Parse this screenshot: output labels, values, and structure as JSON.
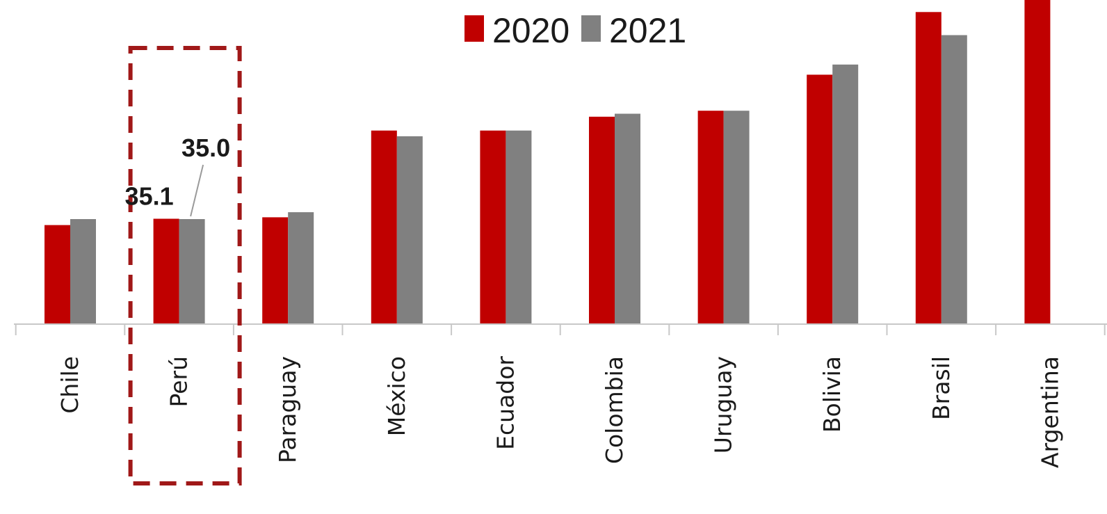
{
  "chart_data": {
    "type": "bar",
    "title": "",
    "xlabel": "",
    "ylabel": "",
    "categories": [
      "Chile",
      "Perú",
      "Paraguay",
      "México",
      "Ecuador",
      "Colombia",
      "Uruguay",
      "Bolivia",
      "Brasil",
      "Argentina"
    ],
    "series": [
      {
        "name": "2020",
        "color": "#c00000",
        "values": [
          33.0,
          35.1,
          35.6,
          64.5,
          64.5,
          69.1,
          71.1,
          83.1,
          104.0,
          108.0
        ]
      },
      {
        "name": "2021",
        "color": "#808080",
        "values": [
          35.0,
          35.0,
          37.3,
          62.6,
          64.5,
          70.1,
          71.1,
          86.5,
          96.3,
          null
        ]
      }
    ],
    "ylim": [
      0,
      108
    ],
    "legend_position": "top",
    "grid": false,
    "data_labels": [
      {
        "category": "Perú",
        "series": "2020",
        "text": "35.1"
      },
      {
        "category": "Perú",
        "series": "2021",
        "text": "35.0"
      }
    ],
    "highlight": {
      "category": "Perú",
      "style": "dashed-box",
      "color": "#a01818"
    }
  }
}
